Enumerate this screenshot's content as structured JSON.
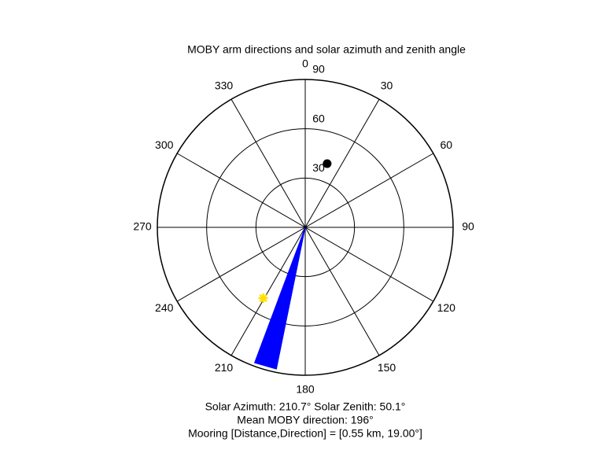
{
  "chart_data": {
    "type": "polar",
    "title": "MOBY arm directions and solar azimuth and zenith angle",
    "rlim": [
      0,
      90
    ],
    "rticks": [
      30,
      60,
      90
    ],
    "thetaticks": [
      0,
      30,
      60,
      90,
      120,
      150,
      180,
      210,
      240,
      270,
      300,
      330
    ],
    "sun": {
      "azimuth": 210.7,
      "zenith": 50.1,
      "color": "#ffe000"
    },
    "mooring": {
      "azimuth": 19,
      "r": 41,
      "color": "#000000"
    },
    "arm": {
      "direction": 196,
      "halfwidth": 4.5,
      "r": 88,
      "color": "#0000ff"
    },
    "annotations": [
      "Solar Azimuth: 210.7°   Solar Zenith: 50.1°",
      "Mean MOBY direction: 196°",
      "Mooring [Distance,Direction] = [0.55 km, 19.00°]"
    ]
  }
}
